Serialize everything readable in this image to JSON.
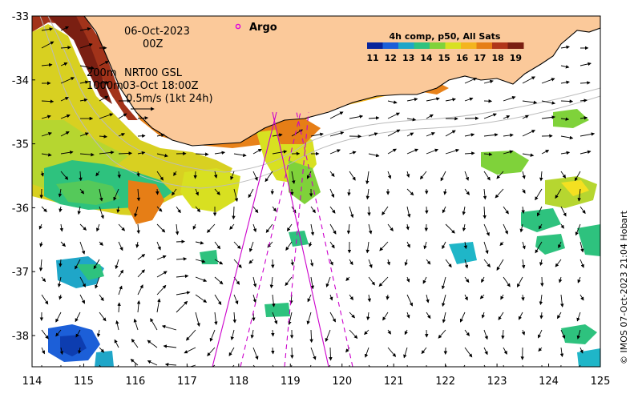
{
  "map": {
    "date_line1": "06-Oct-2023",
    "date_line2": "00Z",
    "contour_200": "200m",
    "contour_1000": "1000m",
    "current_source": "NRT00 GSL",
    "current_time": "03-Oct 18:00Z",
    "scale_arrow_label": "0.5m/s (1kt 24h)",
    "argo_label": "Argo",
    "colorbar_title": "4h comp, p50, All Sats",
    "colorbar_ticks": [
      "11",
      "12",
      "13",
      "14",
      "15",
      "16",
      "17",
      "18",
      "19"
    ],
    "credit": "© IMOS 07-Oct-2023 21:04 Hobart",
    "lat_labels": [
      "-33",
      "-34",
      "-35",
      "-36",
      "-37",
      "-38"
    ],
    "lon_labels": [
      "114",
      "115",
      "116",
      "117",
      "118",
      "119",
      "120",
      "121",
      "122",
      "123",
      "124",
      "125"
    ],
    "colors": {
      "land": "#fbc99a",
      "coast": "#000000",
      "contour": "#aaaaaa",
      "argo": "#dd00dd",
      "track": "#cc00cc"
    },
    "colorbar_colors": [
      "#08249b",
      "#1c5fd8",
      "#1fa6c8",
      "#2ec27e",
      "#7fd23a",
      "#d8e021",
      "#f4b41e",
      "#e67e16",
      "#b0361a",
      "#7a1f12"
    ]
  }
}
